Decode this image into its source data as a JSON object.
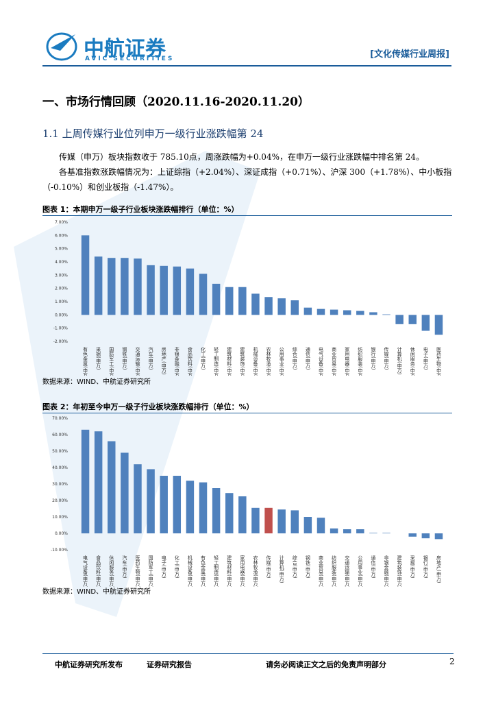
{
  "header": {
    "logo": "中航证券",
    "logo_en": "AVIC SECURITIES",
    "report_type": "[文化传媒行业周报]"
  },
  "heading": "一、市场行情回顾（2020.11.16-2020.11.20）",
  "subheading": "1.1 上周传媒行业位列申万一级行业涨跌幅第 24",
  "paragraphs": [
    "传媒（申万）板块指数收于 785.10点，周涨跌幅为+0.04%，在申万一级行业涨跌幅中排名第 24。",
    "各基准指数涨跌幅情况为：上证综指（+2.04%）、深证成指（+0.71%）、沪深 300（+1.78%）、中小板指（-0.10%）和创业板指（-1.47%）。"
  ],
  "figures": [
    {
      "caption": "图表 1：本期申万一级子行业板块涨跌幅排行（单位：%）",
      "source": "数据来源：WIND、中航证券研究所",
      "chart": {
        "type": "bar",
        "categories": [
          "有色金属(申万)",
          "采掘(申万)",
          "国防军工(申万)",
          "钢铁(申万)",
          "交通运输(申万)",
          "汽车(申万)",
          "房地产(申万)",
          "非银金融(申万)",
          "食品饮料(申万)",
          "化工(申万)",
          "轻工制造(申万)",
          "建筑材料(申万)",
          "建筑装饰(申万)",
          "机械设备(申万)",
          "农林牧渔(申万)",
          "公用事业(申万)",
          "综合(申万)",
          "通信(申万)",
          "电气设备(申万)",
          "商业贸易(申万)",
          "家用电器(申万)",
          "纺织服装(申万)",
          "银行(申万)",
          "传媒(申万)",
          "计算机(申万)",
          "休闲服务(申万)",
          "电子(申万)",
          "医药生物(申万)"
        ],
        "values": [
          6.0,
          4.4,
          4.3,
          4.3,
          4.25,
          3.75,
          3.7,
          3.65,
          3.5,
          3.1,
          2.35,
          2.1,
          2.1,
          1.6,
          1.35,
          1.25,
          1.1,
          0.55,
          0.45,
          0.4,
          0.35,
          0.3,
          0.2,
          0.04,
          -0.7,
          -0.7,
          -1.2,
          -1.5
        ],
        "color": "#4f81bd",
        "ylim": [
          -2,
          7
        ],
        "yticks": [
          {
            "value": -2,
            "label": "-2.00%"
          },
          {
            "value": -1,
            "label": "-1.00%"
          },
          {
            "value": 0,
            "label": "0.00%"
          },
          {
            "value": 1,
            "label": "1.00%"
          },
          {
            "value": 2,
            "label": "2.00%"
          },
          {
            "value": 3,
            "label": "3.00%"
          },
          {
            "value": 4,
            "label": "4.00%"
          },
          {
            "value": 5,
            "label": "5.00%"
          },
          {
            "value": 6,
            "label": "6.00%"
          },
          {
            "value": 7,
            "label": "7.00%"
          }
        ]
      }
    },
    {
      "caption": "图表 2：年初至今申万一级子行业板块涨跌幅排行（单位：%）",
      "source": "数据来源：WIND、中航证券研究所",
      "chart": {
        "type": "bar",
        "categories": [
          "电气设备(申万)",
          "食品饮料(申万)",
          "休闲服务(申万)",
          "汽车(申万)",
          "医药生物(申万)",
          "国防军工(申万)",
          "电子(申万)",
          "化工(申万)",
          "机械设备(申万)",
          "有色金属(申万)",
          "轻工制造(申万)",
          "建筑材料(申万)",
          "家用电器(申万)",
          "农林牧渔(申万)",
          "传媒(申万)",
          "计算机(申万)",
          "综合(申万)",
          "钢铁(申万)",
          "商业贸易(申万)",
          "纺织服装(申万)",
          "交通运输(申万)",
          "公用事业(申万)",
          "通信(申万)",
          "非银金融(申万)",
          "建筑装饰(申万)",
          "采掘(申万)",
          "银行(申万)",
          "房地产(申万)"
        ],
        "values": [
          63,
          62,
          56,
          49,
          42,
          39,
          35,
          35,
          32,
          31,
          27.5,
          24.5,
          22.5,
          15.5,
          15.5,
          14.5,
          14,
          10,
          9.5,
          3,
          2.5,
          2.5,
          0.3,
          0.3,
          0,
          -2,
          -3,
          -3.5
        ],
        "colors": [
          "#4f81bd",
          "#4f81bd",
          "#4f81bd",
          "#4f81bd",
          "#4f81bd",
          "#4f81bd",
          "#4f81bd",
          "#4f81bd",
          "#4f81bd",
          "#4f81bd",
          "#4f81bd",
          "#4f81bd",
          "#4f81bd",
          "#4f81bd",
          "#c0504d",
          "#4f81bd",
          "#4f81bd",
          "#4f81bd",
          "#4f81bd",
          "#4f81bd",
          "#4f81bd",
          "#4f81bd",
          "#4f81bd",
          "#4f81bd",
          "#4f81bd",
          "#4f81bd",
          "#4f81bd",
          "#4f81bd"
        ],
        "ylim": [
          -10,
          70
        ],
        "yticks": [
          {
            "value": -10,
            "label": "-10.00%"
          },
          {
            "value": 0,
            "label": "0.00%"
          },
          {
            "value": 10,
            "label": "10.00%"
          },
          {
            "value": 20,
            "label": "20.00%"
          },
          {
            "value": 30,
            "label": "30.00%"
          },
          {
            "value": 40,
            "label": "40.00%"
          },
          {
            "value": 50,
            "label": "50.00%"
          },
          {
            "value": 60,
            "label": "60.00%"
          },
          {
            "value": 70,
            "label": "70.00%"
          }
        ]
      }
    }
  ],
  "footer": {
    "publisher": "中航证券研究所发布",
    "category": "证券研究报告",
    "disclaimer": "请务必阅读正文之后的免责声明部分",
    "page": "2"
  }
}
